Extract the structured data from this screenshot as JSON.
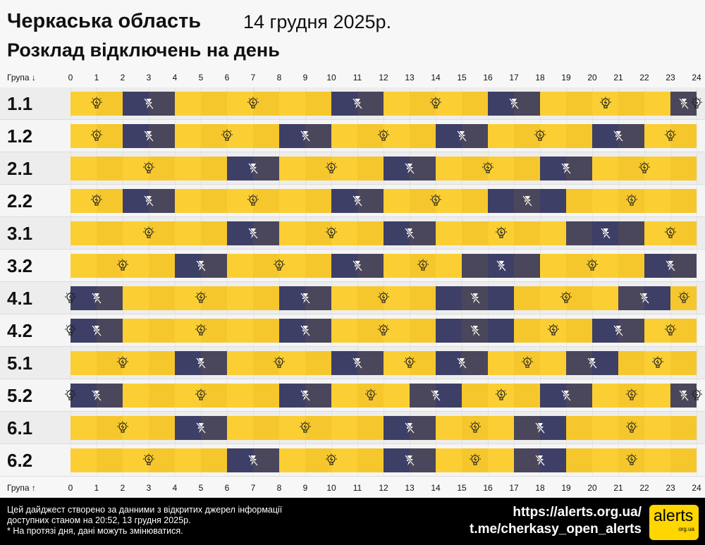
{
  "header": {
    "title": "Черкаська область",
    "date": "14 грудня 2025р.",
    "subtitle": "Розклад відключень на день"
  },
  "axis": {
    "top_label": "Група ↓",
    "bottom_label": "Група ↑",
    "hours": [
      0,
      1,
      2,
      3,
      4,
      5,
      6,
      7,
      8,
      9,
      10,
      11,
      12,
      13,
      14,
      15,
      16,
      17,
      18,
      19,
      20,
      21,
      22,
      23,
      24
    ]
  },
  "colors": {
    "power_on": "#fbcf33",
    "power_off": "#3d3f66"
  },
  "icons": {
    "power_on": "lightbulb-icon",
    "power_off": "no-power-icon"
  },
  "groups": [
    {
      "name": "1.1",
      "outages": [
        [
          2,
          4
        ],
        [
          10,
          12
        ],
        [
          16,
          18
        ],
        [
          23,
          24
        ]
      ]
    },
    {
      "name": "1.2",
      "outages": [
        [
          2,
          4
        ],
        [
          8,
          10
        ],
        [
          14,
          16
        ],
        [
          20,
          22
        ]
      ]
    },
    {
      "name": "2.1",
      "outages": [
        [
          6,
          8
        ],
        [
          12,
          14
        ],
        [
          18,
          20
        ]
      ]
    },
    {
      "name": "2.2",
      "outages": [
        [
          2,
          4
        ],
        [
          10,
          12
        ],
        [
          16,
          19
        ]
      ]
    },
    {
      "name": "3.1",
      "outages": [
        [
          6,
          8
        ],
        [
          12,
          14
        ],
        [
          19,
          22
        ]
      ]
    },
    {
      "name": "3.2",
      "outages": [
        [
          4,
          6
        ],
        [
          10,
          12
        ],
        [
          15,
          18
        ],
        [
          22,
          24
        ]
      ]
    },
    {
      "name": "4.1",
      "outages": [
        [
          0,
          2
        ],
        [
          8,
          10
        ],
        [
          14,
          17
        ],
        [
          21,
          23
        ]
      ]
    },
    {
      "name": "4.2",
      "outages": [
        [
          0,
          2
        ],
        [
          8,
          10
        ],
        [
          14,
          17
        ],
        [
          20,
          22
        ]
      ]
    },
    {
      "name": "5.1",
      "outages": [
        [
          4,
          6
        ],
        [
          10,
          12
        ],
        [
          14,
          16
        ],
        [
          19,
          21
        ]
      ]
    },
    {
      "name": "5.2",
      "outages": [
        [
          0,
          2
        ],
        [
          8,
          10
        ],
        [
          13,
          15
        ],
        [
          18,
          20
        ],
        [
          23,
          24
        ]
      ]
    },
    {
      "name": "6.1",
      "outages": [
        [
          4,
          6
        ],
        [
          12,
          14
        ],
        [
          17,
          19
        ]
      ]
    },
    {
      "name": "6.2",
      "outages": [
        [
          6,
          8
        ],
        [
          12,
          14
        ],
        [
          17,
          19
        ]
      ]
    }
  ],
  "footer": {
    "line1": "Цей дайджест створено за данними з відкритих джерел інформації",
    "line2": "доступних станом на 20:52, 13 грудня 2025р.",
    "line3": "* На протязі дня, дані можуть змінюватися.",
    "url": "https://alerts.org.ua/",
    "telegram": "t.me/cherkasy_open_alerts",
    "logo_text": "alerts",
    "logo_sub": "org.ua"
  }
}
